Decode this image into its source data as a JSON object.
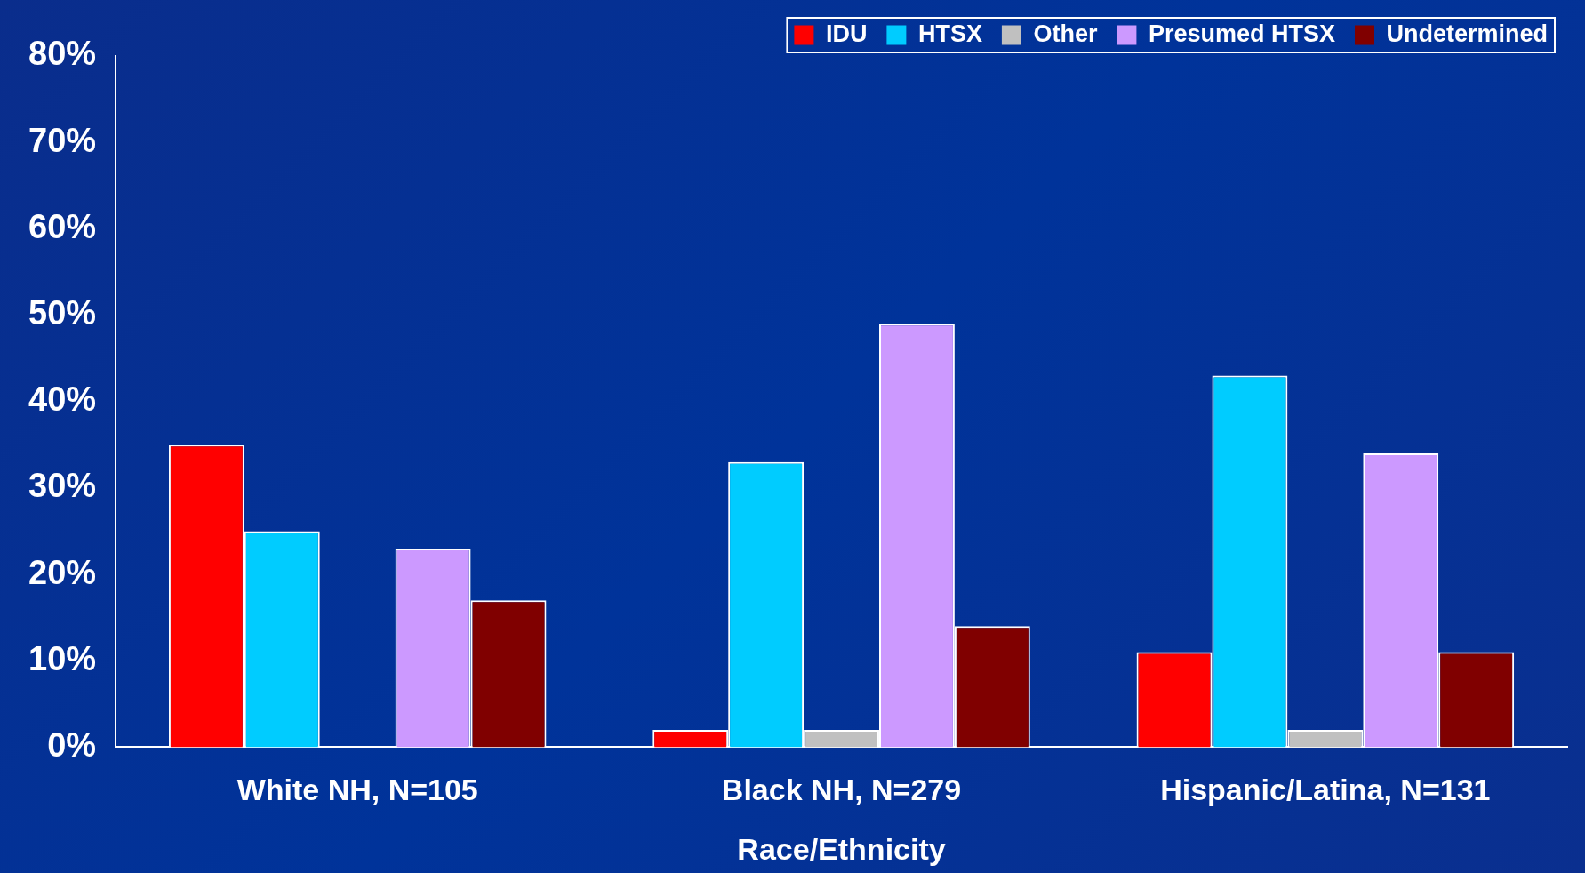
{
  "chart_data": {
    "type": "bar",
    "xlabel": "Race/Ethnicity",
    "categories": [
      "White NH, N=105",
      "Black NH, N=279",
      "Hispanic/Latina, N=131"
    ],
    "series": [
      {
        "name": "IDU",
        "color": "#ff0000",
        "values": [
          35,
          2,
          11
        ]
      },
      {
        "name": "HTSX",
        "color": "#00ccff",
        "values": [
          25,
          33,
          43
        ]
      },
      {
        "name": "Other",
        "color": "#c0c0c0",
        "values": [
          0,
          2,
          2
        ]
      },
      {
        "name": "Presumed HTSX",
        "color": "#cc99ff",
        "values": [
          23,
          49,
          34
        ]
      },
      {
        "name": "Undetermined",
        "color": "#800000",
        "values": [
          17,
          14,
          11
        ]
      }
    ],
    "ylim": [
      0,
      80
    ],
    "yticks": [
      {
        "value": 0,
        "label": "0%"
      },
      {
        "value": 10,
        "label": "10%"
      },
      {
        "value": 20,
        "label": "20%"
      },
      {
        "value": 30,
        "label": "30%"
      },
      {
        "value": 40,
        "label": "40%"
      },
      {
        "value": 50,
        "label": "50%"
      },
      {
        "value": 60,
        "label": "60%"
      },
      {
        "value": 70,
        "label": "70%"
      },
      {
        "value": 80,
        "label": "80%"
      }
    ],
    "grid": false,
    "legend": "top right"
  }
}
